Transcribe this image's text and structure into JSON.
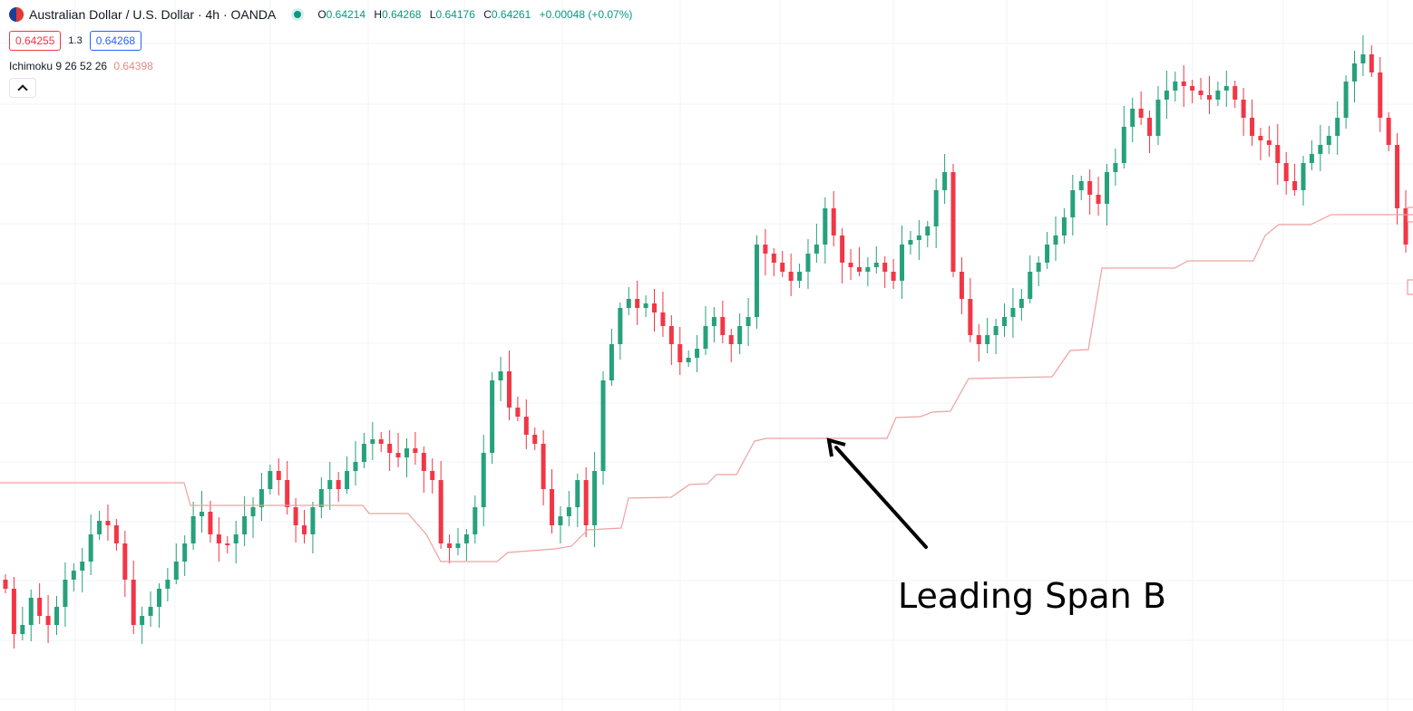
{
  "header": {
    "title": "Australian Dollar / U.S. Dollar · 4h · OANDA",
    "open_label": "O",
    "open": "0.64214",
    "high_label": "H",
    "high": "0.64268",
    "low_label": "L",
    "low": "0.64176",
    "close_label": "C",
    "close": "0.64261",
    "change": "+0.00048 (+0.07%)",
    "flag_icon": "aud-usd-flag-icon",
    "status": "market-open-dot"
  },
  "quotes": {
    "bid": "0.64255",
    "spread": "1.3",
    "ask": "0.64268"
  },
  "indicator": {
    "name": "Ichimoku 9 26 52 26",
    "value": "0.64398"
  },
  "annotation": {
    "text": "Leading Span B"
  },
  "colors": {
    "up": "#26a17b",
    "down": "#f23645",
    "span_b": "#f0a0a0",
    "grid": "#f0f3fa",
    "arrow": "#000000"
  }
}
